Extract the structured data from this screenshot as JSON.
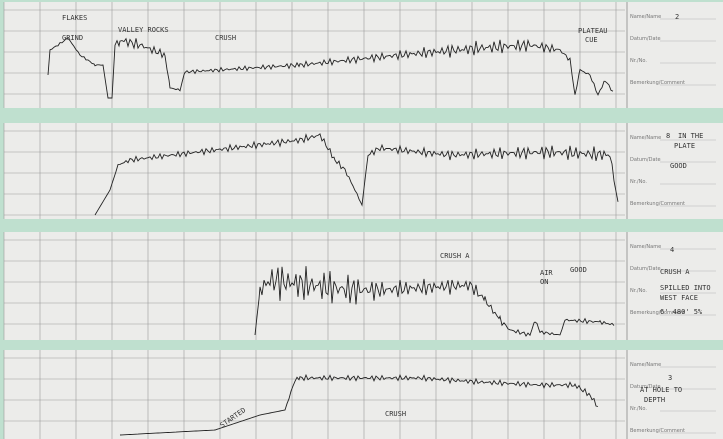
{
  "strips": [
    {
      "number": "2",
      "notes": [
        "FLAKES",
        "GRIND",
        "VALLEY ROCKS",
        "CRUSH",
        "PLATEAU",
        "CUE"
      ]
    },
    {
      "number": "8",
      "notes": [
        "IN THE",
        "PLATE",
        "GOOD"
      ]
    },
    {
      "number": "4",
      "notes": [
        "CRUSH A",
        "AIR",
        "ON",
        "GOOD",
        "CRUSH A",
        "SPILLED INTO",
        "WEST FACE",
        "6' 480' 5%"
      ]
    },
    {
      "number": "3",
      "notes": [
        "CRUSH",
        "STARTED",
        "AT HOLE TO",
        "DEPTH"
      ]
    }
  ],
  "panel_labels": [
    "Name/Name",
    "Datum/Date",
    "Nr./No.",
    "Bemerkung/Comment"
  ]
}
